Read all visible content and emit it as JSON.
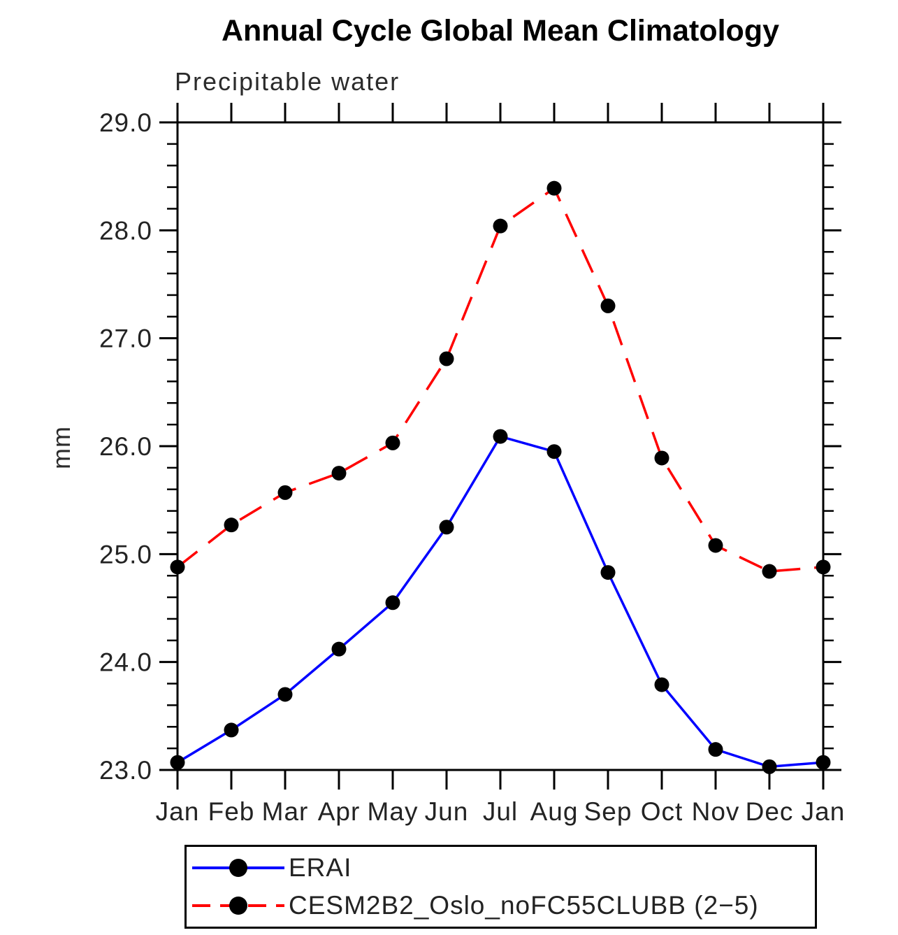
{
  "header": {
    "title": "Annual Cycle Global Mean Climatology",
    "subtitle": "Precipitable water"
  },
  "colors": {
    "axis": "#000000",
    "text": "#232323",
    "background": "#ffffff",
    "erai_line": "#0000ff",
    "cesm_line": "#ff0000",
    "marker": "#000000"
  },
  "chart_data": {
    "type": "line",
    "title": "Annual Cycle Global Mean Climatology",
    "subtitle": "Precipitable water",
    "xlabel": "",
    "ylabel": "mm",
    "categories": [
      "Jan",
      "Feb",
      "Mar",
      "Apr",
      "May",
      "Jun",
      "Jul",
      "Aug",
      "Sep",
      "Oct",
      "Nov",
      "Dec",
      "Jan"
    ],
    "ylim": [
      23.0,
      29.0
    ],
    "ytick_interval": 1.0,
    "yminor_interval": 0.2,
    "ytick_labels": [
      "23.0",
      "24.0",
      "25.0",
      "26.0",
      "27.0",
      "28.0",
      "29.0"
    ],
    "grid": false,
    "legend_position": "bottom",
    "marker_color": "#000000",
    "series": [
      {
        "name": "ERAI",
        "color": "#0000ff",
        "style": "solid",
        "marker": "circle",
        "values": [
          23.07,
          23.37,
          23.7,
          24.12,
          24.55,
          25.25,
          26.09,
          25.95,
          24.83,
          23.79,
          23.19,
          23.03,
          23.07
        ]
      },
      {
        "name": "CESM2B2_Oslo_noFC55CLUBB (2−5)",
        "color": "#ff0000",
        "style": "dashed",
        "marker": "circle",
        "values": [
          24.88,
          25.27,
          25.57,
          25.75,
          26.03,
          26.81,
          28.04,
          28.39,
          27.3,
          25.89,
          25.08,
          24.84,
          24.88
        ]
      }
    ]
  }
}
